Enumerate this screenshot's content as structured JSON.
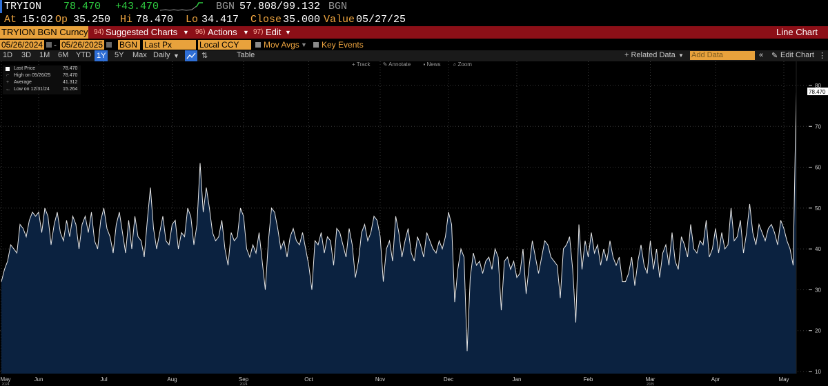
{
  "quote": {
    "ticker": "TRYION",
    "last": "78.470",
    "change": "+43.470",
    "source": "BGN",
    "bid_ask": "57.808/99.132",
    "source2": "BGN",
    "at_label": "At",
    "time": "15:02",
    "open_label": "Op",
    "open": "35.250",
    "high_label": "Hi",
    "high": "78.470",
    "low_label": "Lo",
    "low": "34.417",
    "close_label": "Close",
    "close": "35.000",
    "value_label": "Value",
    "value_date": "05/27/25"
  },
  "toolbar": {
    "security": "TRYION BGN Curncy",
    "suggested_num": "94)",
    "suggested": "Suggested Charts",
    "actions_num": "96)",
    "actions": "Actions",
    "edit_num": "97)",
    "edit": "Edit",
    "chart_type": "Line Chart"
  },
  "controls": {
    "start_date": "05/26/2024",
    "dash": "-",
    "end_date": "05/26/2025",
    "source": "BGN",
    "field": "Last Px",
    "currency": "Local CCY",
    "mov_avgs": "Mov Avgs",
    "key_events": "Key Events"
  },
  "range_bar": {
    "ranges": [
      "1D",
      "3D",
      "1M",
      "6M",
      "YTD",
      "1Y",
      "5Y",
      "Max"
    ],
    "active": "1Y",
    "frequency": "Daily",
    "table": "Table",
    "related_data": "+ Related Data",
    "add_data": "Add Data",
    "edit_chart": "Edit Chart"
  },
  "chart_tools": [
    "Track",
    "Annotate",
    "News",
    "Zoom"
  ],
  "legend": {
    "rows": [
      {
        "label": "Last Price",
        "value": "78.470"
      },
      {
        "label": "High on 05/26/25",
        "value": "78.470"
      },
      {
        "label": "Average",
        "value": "41.312"
      },
      {
        "label": "Low on 12/31/24",
        "value": "15.264"
      }
    ]
  },
  "colors": {
    "line": "#e8e8e8",
    "area": "#0b2240",
    "background": "#000000",
    "up": "#2ecc40",
    "amber": "#f0a640",
    "red_bar": "#8c0f17"
  },
  "chart_data": {
    "type": "area",
    "ylim": [
      10,
      80
    ],
    "y_ticks": [
      10,
      20,
      30,
      40,
      50,
      60,
      70,
      80
    ],
    "last_value_label": "78.470",
    "x_labels": [
      {
        "label": "May",
        "sub": "2024",
        "index": 0
      },
      {
        "label": "Jun",
        "sub": "",
        "index": 12
      },
      {
        "label": "Jul",
        "sub": "",
        "index": 33
      },
      {
        "label": "Aug",
        "sub": "",
        "index": 55
      },
      {
        "label": "Sep",
        "sub": "2024",
        "index": 78
      },
      {
        "label": "Oct",
        "sub": "",
        "index": 99
      },
      {
        "label": "Nov",
        "sub": "",
        "index": 122
      },
      {
        "label": "Dec",
        "sub": "",
        "index": 144
      },
      {
        "label": "Jan",
        "sub": "",
        "index": 166
      },
      {
        "label": "Feb",
        "sub": "",
        "index": 189
      },
      {
        "label": "Mar",
        "sub": "2025",
        "index": 209
      },
      {
        "label": "Apr",
        "sub": "",
        "index": 230
      },
      {
        "label": "May",
        "sub": "",
        "index": 252
      }
    ],
    "values": [
      32,
      35,
      37,
      41,
      40,
      39,
      46,
      45,
      43,
      47,
      49,
      48,
      49,
      44,
      50,
      48,
      41,
      46,
      49,
      44,
      42,
      47,
      43,
      48,
      46,
      40,
      46,
      48,
      44,
      49,
      42,
      40,
      47,
      50,
      45,
      43,
      39,
      46,
      49,
      44,
      39,
      47,
      40,
      48,
      43,
      42,
      38,
      47,
      55,
      45,
      40,
      44,
      48,
      42,
      41,
      46,
      47,
      40,
      44,
      43,
      50,
      48,
      41,
      46,
      61,
      49,
      55,
      50,
      44,
      42,
      43,
      47,
      40,
      36,
      44,
      42,
      43,
      50,
      48,
      40,
      38,
      41,
      39,
      44,
      37,
      30,
      42,
      50,
      49,
      45,
      40,
      42,
      38,
      43,
      45,
      42,
      41,
      44,
      40,
      36,
      30,
      42,
      41,
      44,
      39,
      43,
      42,
      36,
      45,
      44,
      41,
      38,
      45,
      41,
      33,
      37,
      44,
      46,
      42,
      44,
      48,
      47,
      43,
      32,
      40,
      42,
      37,
      48,
      44,
      38,
      42,
      45,
      39,
      37,
      43,
      41,
      38,
      44,
      42,
      40,
      39,
      42,
      40,
      43,
      49,
      46,
      27,
      35,
      40,
      38,
      15,
      33,
      39,
      36,
      37,
      34,
      37,
      38,
      35,
      40,
      38,
      25,
      37,
      38,
      35,
      37,
      33,
      34,
      40,
      29,
      36,
      42,
      38,
      34,
      38,
      42,
      41,
      38,
      37,
      36,
      28,
      40,
      41,
      43,
      35,
      22,
      46,
      35,
      42,
      38,
      44,
      39,
      41,
      36,
      40,
      37,
      42,
      38,
      36,
      38,
      32,
      32,
      34,
      38,
      31,
      37,
      41,
      36,
      34,
      42,
      35,
      40,
      33,
      39,
      41,
      36,
      44,
      37,
      35,
      43,
      41,
      38,
      46,
      40,
      39,
      42,
      41,
      47,
      38,
      40,
      45,
      39,
      44,
      40,
      41,
      50,
      42,
      43,
      47,
      39,
      44,
      51,
      44,
      41,
      46,
      44,
      42,
      45,
      46,
      44,
      41,
      47,
      45,
      42,
      40,
      36,
      78.47
    ]
  }
}
